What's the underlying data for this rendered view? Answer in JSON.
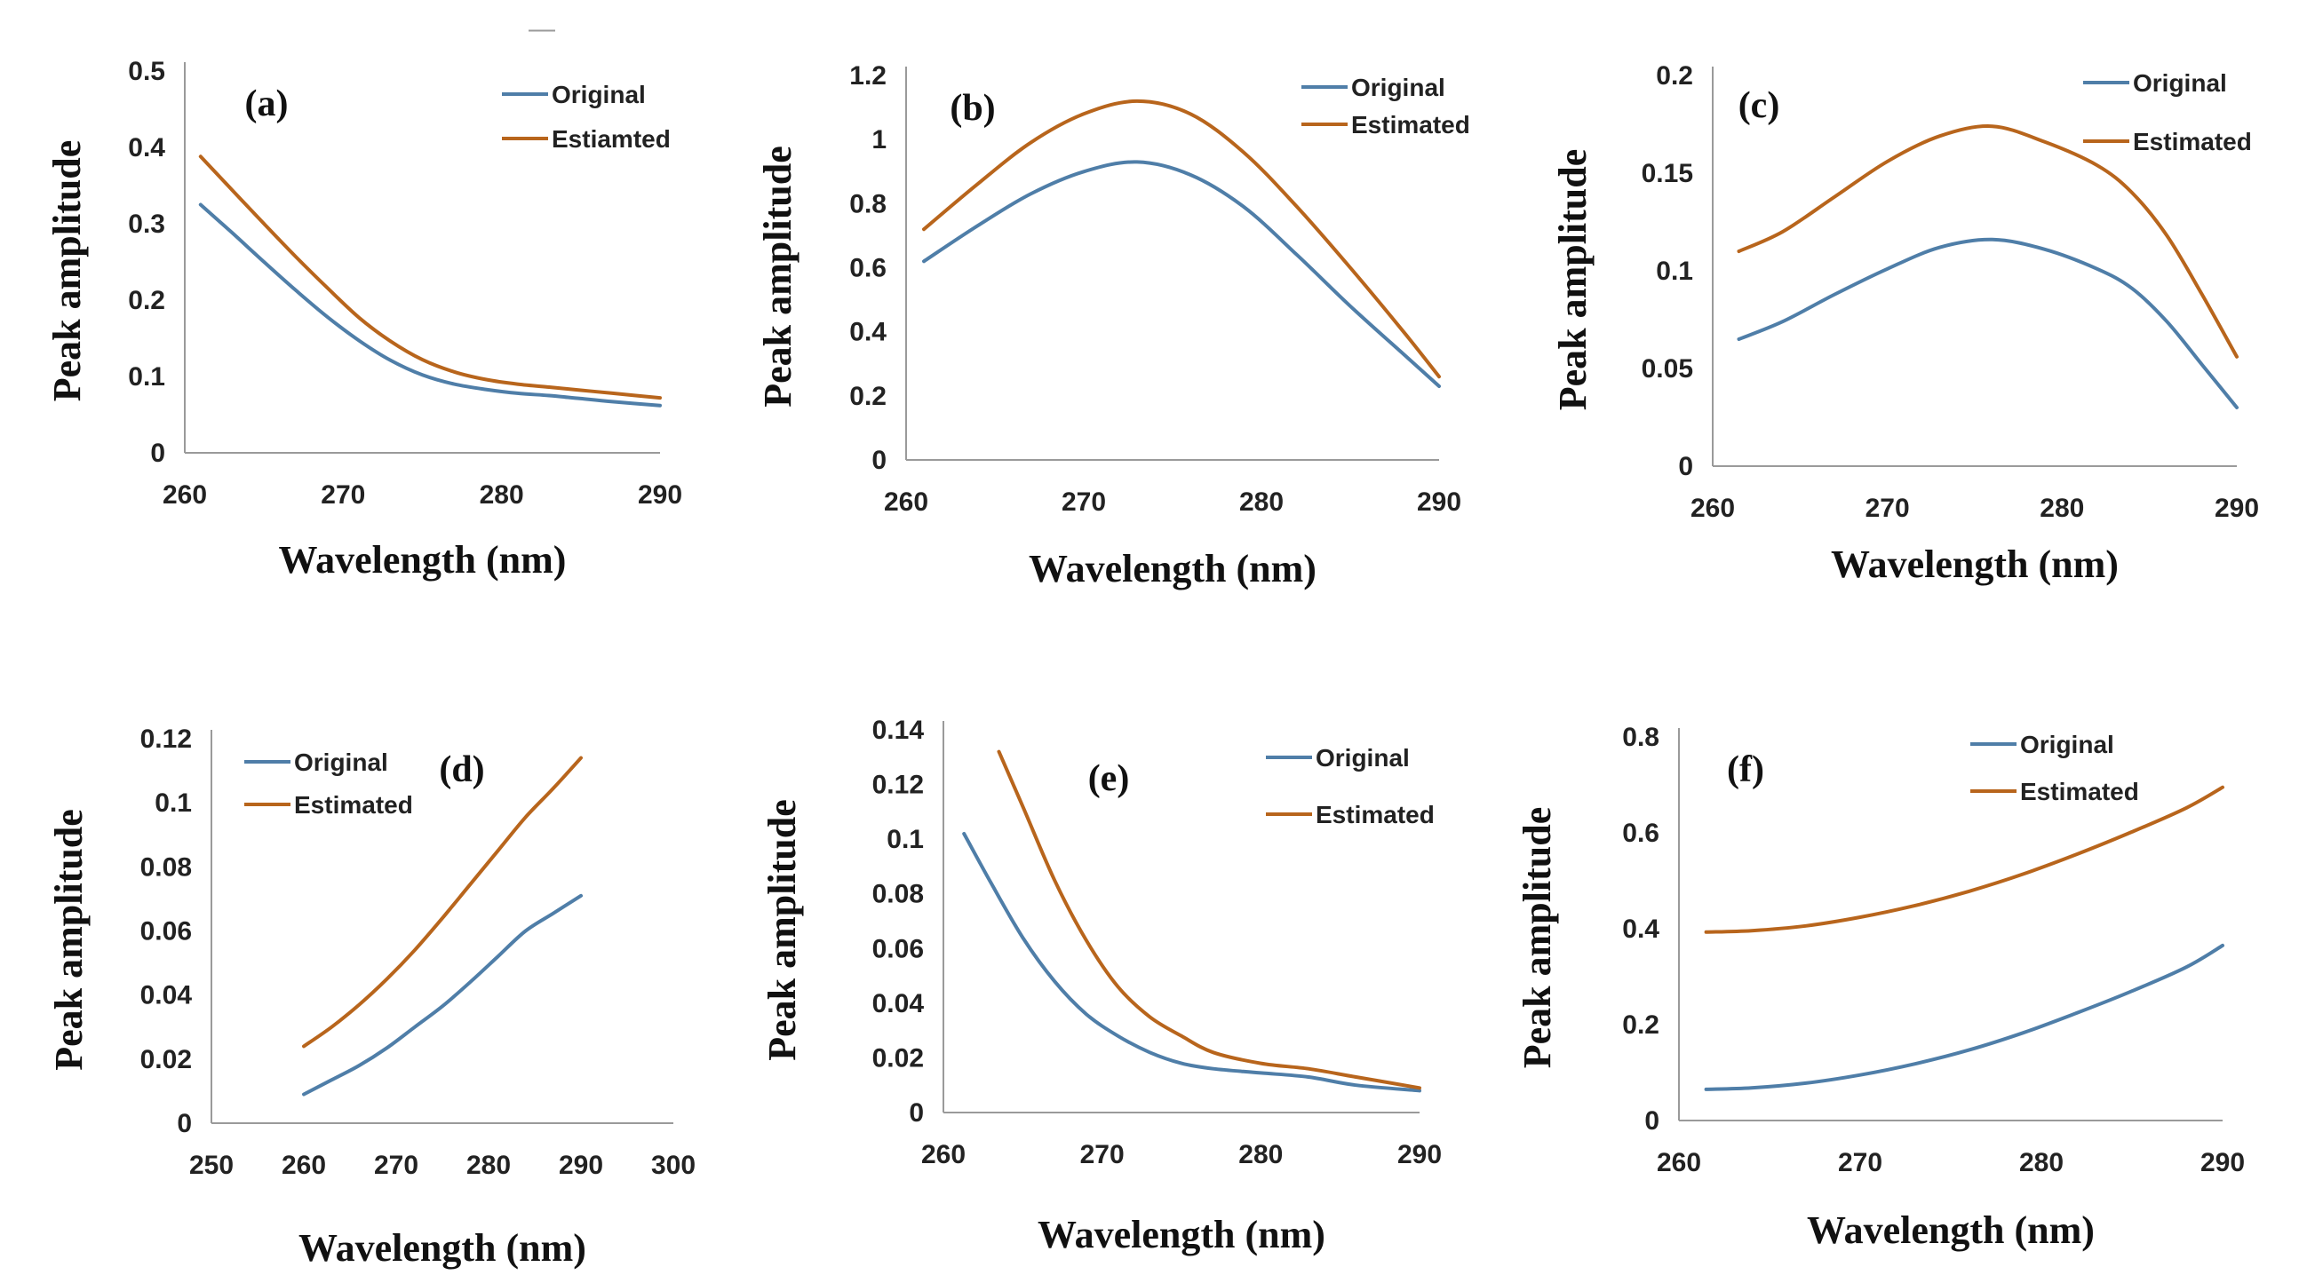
{
  "figure_mark": "—",
  "colors": {
    "original": "#4f7ea8",
    "estimated": "#b8651c"
  },
  "chart_data": [
    {
      "panel": "(a)",
      "type": "line",
      "xlabel": "Wavelength (nm)",
      "ylabel": "Peak amplitude",
      "xlim": [
        260,
        290
      ],
      "ylim": [
        0,
        0.5
      ],
      "x_ticks": [
        "260",
        "270",
        "280",
        "290"
      ],
      "y_ticks": [
        "0",
        "0.1",
        "0.2",
        "0.3",
        "0.4",
        "0.5"
      ],
      "series": [
        {
          "name": "Original",
          "color": "#4f7ea8",
          "x": [
            261,
            263,
            265,
            267,
            269,
            271,
            273,
            275,
            277,
            279,
            281,
            283,
            285,
            287,
            290
          ],
          "values": [
            0.325,
            0.288,
            0.25,
            0.213,
            0.178,
            0.147,
            0.121,
            0.102,
            0.09,
            0.083,
            0.078,
            0.075,
            0.071,
            0.067,
            0.062
          ]
        },
        {
          "name": "Estiamted",
          "color": "#b8651c",
          "x": [
            261,
            263,
            265,
            267,
            269,
            271,
            273,
            275,
            277,
            279,
            281,
            283,
            285,
            287,
            290
          ],
          "values": [
            0.388,
            0.344,
            0.3,
            0.257,
            0.216,
            0.177,
            0.146,
            0.122,
            0.106,
            0.096,
            0.09,
            0.086,
            0.082,
            0.078,
            0.072
          ]
        }
      ]
    },
    {
      "panel": "(b)",
      "type": "line",
      "xlabel": "Wavelength (nm)",
      "ylabel": "Peak amplitude",
      "xlim": [
        260,
        290
      ],
      "ylim": [
        0,
        1.2
      ],
      "x_ticks": [
        "260",
        "270",
        "280",
        "290"
      ],
      "y_ticks": [
        "0",
        "0.2",
        "0.4",
        "0.6",
        "0.8",
        "1",
        "1.2"
      ],
      "series": [
        {
          "name": "Original",
          "color": "#4f7ea8",
          "x": [
            261,
            264,
            267,
            270,
            273,
            276,
            279,
            282,
            285,
            288,
            290
          ],
          "values": [
            0.62,
            0.73,
            0.83,
            0.9,
            0.93,
            0.89,
            0.79,
            0.64,
            0.48,
            0.33,
            0.23
          ]
        },
        {
          "name": "Estimated",
          "color": "#b8651c",
          "x": [
            261,
            264,
            267,
            270,
            273,
            276,
            279,
            282,
            285,
            288,
            290
          ],
          "values": [
            0.72,
            0.86,
            0.99,
            1.08,
            1.12,
            1.08,
            0.96,
            0.79,
            0.6,
            0.4,
            0.26
          ]
        }
      ]
    },
    {
      "panel": "(c)",
      "type": "line",
      "xlabel": "Wavelength (nm)",
      "ylabel": "Peak amplitude",
      "xlim": [
        260,
        290
      ],
      "ylim": [
        0,
        0.2
      ],
      "x_ticks": [
        "260",
        "270",
        "280",
        "290"
      ],
      "y_ticks": [
        "0",
        "0.05",
        "0.1",
        "0.15",
        "0.2"
      ],
      "series": [
        {
          "name": "Original",
          "color": "#4f7ea8",
          "x": [
            261.5,
            264,
            267,
            270,
            273,
            276,
            279,
            282,
            284,
            286,
            288,
            290
          ],
          "values": [
            0.065,
            0.074,
            0.088,
            0.101,
            0.112,
            0.116,
            0.111,
            0.101,
            0.091,
            0.074,
            0.052,
            0.03
          ]
        },
        {
          "name": "Estimated",
          "color": "#b8651c",
          "x": [
            261.5,
            264,
            267,
            270,
            273,
            276,
            279,
            282,
            284,
            286,
            288,
            290
          ],
          "values": [
            0.11,
            0.12,
            0.138,
            0.156,
            0.169,
            0.174,
            0.166,
            0.154,
            0.14,
            0.118,
            0.088,
            0.056
          ]
        }
      ]
    },
    {
      "panel": "(d)",
      "type": "line",
      "xlabel": "Wavelength (nm)",
      "ylabel": "Peak amplitude",
      "xlim": [
        250,
        300
      ],
      "ylim": [
        0,
        0.12
      ],
      "x_ticks": [
        "250",
        "260",
        "270",
        "280",
        "290",
        "300"
      ],
      "y_ticks": [
        "0",
        "0.02",
        "0.04",
        "0.06",
        "0.08",
        "0.1",
        "0.12"
      ],
      "series": [
        {
          "name": "Original",
          "color": "#4f7ea8",
          "x": [
            260,
            263,
            266,
            269,
            272,
            275,
            278,
            281,
            284,
            287,
            290
          ],
          "values": [
            0.009,
            0.0135,
            0.018,
            0.0235,
            0.03,
            0.0365,
            0.044,
            0.052,
            0.06,
            0.0655,
            0.071
          ]
        },
        {
          "name": "Estimated",
          "color": "#b8651c",
          "x": [
            260,
            263,
            266,
            269,
            272,
            275,
            278,
            281,
            284,
            287,
            290
          ],
          "values": [
            0.024,
            0.03,
            0.037,
            0.045,
            0.054,
            0.064,
            0.0745,
            0.085,
            0.0955,
            0.1045,
            0.114
          ]
        }
      ]
    },
    {
      "panel": "(e)",
      "type": "line",
      "xlabel": "Wavelength (nm)",
      "ylabel": "Peak amplitude",
      "xlim": [
        260,
        290
      ],
      "ylim": [
        0,
        0.14
      ],
      "x_ticks": [
        "260",
        "270",
        "280",
        "290"
      ],
      "y_ticks": [
        "0",
        "0.02",
        "0.04",
        "0.06",
        "0.08",
        "0.1",
        "0.12",
        "0.14"
      ],
      "series": [
        {
          "name": "Original",
          "color": "#4f7ea8",
          "x": [
            261.3,
            263,
            265,
            267,
            269,
            271,
            273,
            275,
            277,
            280,
            283,
            286,
            290
          ],
          "values": [
            0.102,
            0.084,
            0.064,
            0.048,
            0.036,
            0.028,
            0.022,
            0.018,
            0.016,
            0.0145,
            0.013,
            0.01,
            0.008
          ]
        },
        {
          "name": "Estimated",
          "color": "#b8651c",
          "x": [
            263.5,
            265,
            267,
            269,
            271,
            273,
            275,
            277,
            280,
            283,
            286,
            290
          ],
          "values": [
            0.132,
            0.112,
            0.085,
            0.063,
            0.046,
            0.035,
            0.028,
            0.022,
            0.018,
            0.016,
            0.013,
            0.009
          ]
        }
      ]
    },
    {
      "panel": "(f)",
      "type": "line",
      "xlabel": "Wavelength (nm)",
      "ylabel": "Peak amplitude",
      "xlim": [
        260,
        290
      ],
      "ylim": [
        0,
        0.8
      ],
      "x_ticks": [
        "260",
        "270",
        "280",
        "290"
      ],
      "y_ticks": [
        "0",
        "0.2",
        "0.4",
        "0.6",
        "0.8"
      ],
      "series": [
        {
          "name": "Original",
          "color": "#4f7ea8",
          "x": [
            261.5,
            264,
            267,
            270,
            273,
            276,
            279,
            282,
            285,
            288,
            290
          ],
          "values": [
            0.065,
            0.068,
            0.078,
            0.095,
            0.118,
            0.147,
            0.183,
            0.225,
            0.27,
            0.32,
            0.365
          ]
        },
        {
          "name": "Estimated",
          "color": "#b8651c",
          "x": [
            261.5,
            264,
            267,
            270,
            273,
            276,
            279,
            282,
            285,
            288,
            290
          ],
          "values": [
            0.393,
            0.396,
            0.406,
            0.424,
            0.448,
            0.478,
            0.514,
            0.556,
            0.602,
            0.652,
            0.695
          ]
        }
      ]
    }
  ]
}
